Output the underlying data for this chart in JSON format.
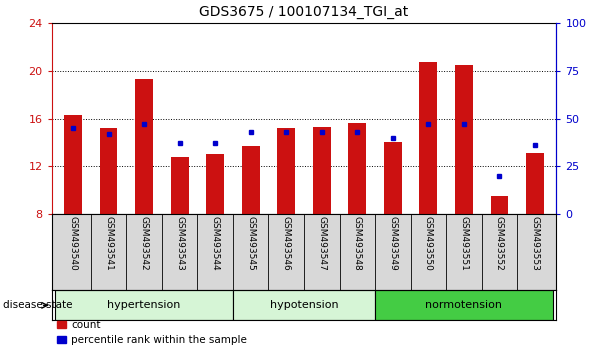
{
  "title": "GDS3675 / 100107134_TGI_at",
  "samples": [
    "GSM493540",
    "GSM493541",
    "GSM493542",
    "GSM493543",
    "GSM493544",
    "GSM493545",
    "GSM493546",
    "GSM493547",
    "GSM493548",
    "GSM493549",
    "GSM493550",
    "GSM493551",
    "GSM493552",
    "GSM493553"
  ],
  "count_values": [
    16.3,
    15.2,
    19.3,
    12.8,
    13.0,
    13.7,
    15.2,
    15.3,
    15.6,
    14.0,
    20.7,
    20.5,
    9.5,
    13.1
  ],
  "blue_marker_pct": [
    45,
    42,
    47,
    37,
    37,
    43,
    43,
    43,
    43,
    40,
    47,
    47,
    20,
    36
  ],
  "group_info": [
    {
      "label": "hypertension",
      "start": 0,
      "end": 4,
      "color": "#d6f5d6"
    },
    {
      "label": "hypotension",
      "start": 5,
      "end": 8,
      "color": "#d6f5d6"
    },
    {
      "label": "normotension",
      "start": 9,
      "end": 13,
      "color": "#44cc44"
    }
  ],
  "ylim_left": [
    8,
    24
  ],
  "ylim_right": [
    0,
    100
  ],
  "yticks_left": [
    8,
    12,
    16,
    20,
    24
  ],
  "yticks_right": [
    0,
    25,
    50,
    75,
    100
  ],
  "bar_color": "#cc1111",
  "marker_color": "#0000cc",
  "bg_color": "#d8d8d8",
  "left_axis_color": "#cc1111",
  "right_axis_color": "#0000cc",
  "grid_lines": [
    12,
    16,
    20
  ]
}
